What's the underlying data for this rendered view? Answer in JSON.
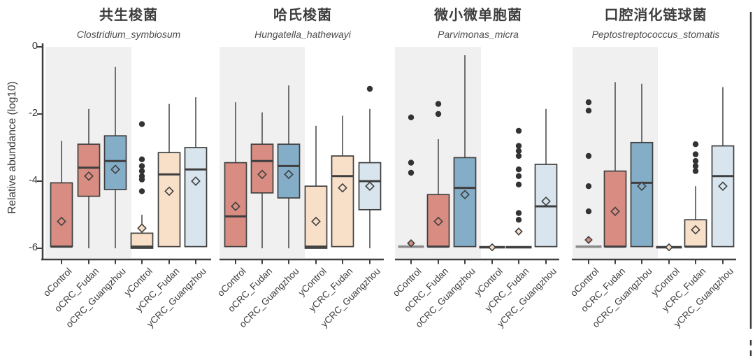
{
  "chart_data": {
    "type": "box",
    "ylabel": "Relative abundance (log10)",
    "ylim": [
      -6,
      0
    ],
    "yticks": [
      0,
      -2,
      -4,
      -6
    ],
    "grid": false,
    "legend": "none",
    "categories": [
      "oControl",
      "oCRC_Fudan",
      "oCRC_Guangzhou",
      "yControl",
      "yCRC_Fudan",
      "yCRC_Guangzhou"
    ],
    "group_fills": [
      "salmon",
      "salmon",
      "steel_blue",
      "pale_peach",
      "pale_peach",
      "pale_blue"
    ],
    "shaded_groups": [
      0,
      1,
      2
    ],
    "panels": [
      {
        "title": "共生梭菌",
        "species": "Clostridium_symbiosum",
        "boxes": [
          {
            "group": "oControl",
            "whisker_low": -5.95,
            "q1": -5.95,
            "median": -5.95,
            "q3": -4.05,
            "whisker_high": -2.8,
            "mean": -5.2,
            "outliers": []
          },
          {
            "group": "oCRC_Fudan",
            "whisker_low": -6.0,
            "q1": -4.45,
            "median": -3.6,
            "q3": -2.9,
            "whisker_high": -1.85,
            "mean": -3.85,
            "outliers": []
          },
          {
            "group": "oCRC_Guangzhou",
            "whisker_low": -6.0,
            "q1": -4.25,
            "median": -3.4,
            "q3": -2.65,
            "whisker_high": -0.6,
            "mean": -3.65,
            "outliers": []
          },
          {
            "group": "yControl",
            "whisker_low": -6.0,
            "q1": -6.0,
            "median": -5.95,
            "q3": -5.55,
            "whisker_high": -5.0,
            "mean": -5.4,
            "outliers": [
              -2.3,
              -3.35,
              -3.55,
              -3.7,
              -3.85,
              -3.95,
              -4.3
            ]
          },
          {
            "group": "yCRC_Fudan",
            "whisker_low": -5.95,
            "q1": -5.95,
            "median": -3.8,
            "q3": -3.15,
            "whisker_high": -1.7,
            "mean": -4.3,
            "outliers": []
          },
          {
            "group": "yCRC_Guangzhou",
            "whisker_low": -5.95,
            "q1": -5.95,
            "median": -3.65,
            "q3": -3.0,
            "whisker_high": -1.5,
            "mean": -4.0,
            "outliers": []
          }
        ]
      },
      {
        "title": "哈氏梭菌",
        "species": "Hungatella_hathewayi",
        "boxes": [
          {
            "group": "oControl",
            "whisker_low": -5.95,
            "q1": -5.95,
            "median": -5.05,
            "q3": -3.45,
            "whisker_high": -1.65,
            "mean": -4.75,
            "outliers": []
          },
          {
            "group": "oCRC_Fudan",
            "whisker_low": -6.0,
            "q1": -4.35,
            "median": -3.4,
            "q3": -2.9,
            "whisker_high": -1.95,
            "mean": -3.8,
            "outliers": []
          },
          {
            "group": "oCRC_Guangzhou",
            "whisker_low": -6.0,
            "q1": -4.5,
            "median": -3.55,
            "q3": -2.9,
            "whisker_high": -1.15,
            "mean": -3.8,
            "outliers": []
          },
          {
            "group": "yControl",
            "whisker_low": -6.0,
            "q1": -6.0,
            "median": -5.95,
            "q3": -4.15,
            "whisker_high": -2.35,
            "mean": -5.2,
            "outliers": []
          },
          {
            "group": "yCRC_Fudan",
            "whisker_low": -5.95,
            "q1": -5.95,
            "median": -3.85,
            "q3": -3.25,
            "whisker_high": -2.05,
            "mean": -4.2,
            "outliers": []
          },
          {
            "group": "yCRC_Guangzhou",
            "whisker_low": -6.0,
            "q1": -4.85,
            "median": -4.0,
            "q3": -3.45,
            "whisker_high": -1.85,
            "mean": -4.15,
            "outliers": [
              -1.25
            ]
          }
        ]
      },
      {
        "title": "微小微单胞菌",
        "species": "Parvimonas_micra",
        "boxes": [
          {
            "group": "oControl",
            "flat": "gray",
            "whisker_low": -5.95,
            "q1": -5.95,
            "median": -5.95,
            "q3": -5.95,
            "whisker_high": -5.95,
            "mean": -5.85,
            "outliers": [
              -2.1,
              -3.45,
              -3.75
            ]
          },
          {
            "group": "oCRC_Fudan",
            "whisker_low": -5.95,
            "q1": -5.95,
            "median": -5.95,
            "q3": -4.4,
            "whisker_high": -2.75,
            "mean": -5.2,
            "outliers": [
              -1.7,
              -2.0
            ]
          },
          {
            "group": "oCRC_Guangzhou",
            "whisker_low": -5.95,
            "q1": -5.95,
            "median": -4.2,
            "q3": -3.3,
            "whisker_high": -0.25,
            "mean": -4.4,
            "outliers": []
          },
          {
            "group": "yControl",
            "flat": "dark",
            "whisker_low": -5.97,
            "q1": -5.97,
            "median": -5.97,
            "q3": -5.97,
            "whisker_high": -5.97,
            "mean": -5.97,
            "outliers": []
          },
          {
            "group": "yCRC_Fudan",
            "flat": "dark",
            "whisker_low": -5.97,
            "q1": -5.97,
            "median": -5.97,
            "q3": -5.97,
            "whisker_high": -5.97,
            "mean": -5.5,
            "outliers": [
              -2.5,
              -2.95,
              -3.1,
              -3.25,
              -3.65,
              -3.85,
              -4.1,
              -4.95,
              -5.15
            ]
          },
          {
            "group": "yCRC_Guangzhou",
            "whisker_low": -5.95,
            "q1": -5.95,
            "median": -4.75,
            "q3": -3.5,
            "whisker_high": -1.85,
            "mean": -4.6,
            "outliers": []
          }
        ]
      },
      {
        "title": "口腔消化链球菌",
        "species": "Peptostreptococcus_stomatis",
        "boxes": [
          {
            "group": "oControl",
            "flat": "gray",
            "whisker_low": -5.95,
            "q1": -5.95,
            "median": -5.95,
            "q3": -5.95,
            "whisker_high": -5.95,
            "mean": -5.75,
            "outliers": [
              -1.65,
              -1.9,
              -3.25,
              -4.15,
              -4.9
            ]
          },
          {
            "group": "oCRC_Fudan",
            "whisker_low": -5.95,
            "q1": -5.95,
            "median": -5.95,
            "q3": -3.7,
            "whisker_high": -1.05,
            "mean": -4.9,
            "outliers": []
          },
          {
            "group": "oCRC_Guangzhou",
            "whisker_low": -5.95,
            "q1": -5.95,
            "median": -4.05,
            "q3": -2.85,
            "whisker_high": -1.1,
            "mean": -4.15,
            "outliers": []
          },
          {
            "group": "yControl",
            "flat": "dark",
            "whisker_low": -5.97,
            "q1": -5.97,
            "median": -5.97,
            "q3": -5.97,
            "whisker_high": -5.97,
            "mean": -5.97,
            "outliers": []
          },
          {
            "group": "yCRC_Fudan",
            "whisker_low": -5.95,
            "q1": -5.95,
            "median": -5.95,
            "q3": -5.15,
            "whisker_high": -4.15,
            "mean": -5.45,
            "outliers": [
              -2.9,
              -3.2,
              -3.4,
              -3.55,
              -3.7
            ]
          },
          {
            "group": "yCRC_Guangzhou",
            "whisker_low": -5.95,
            "q1": -5.95,
            "median": -3.85,
            "q3": -2.95,
            "whisker_high": -1.2,
            "mean": -4.15,
            "outliers": []
          }
        ]
      }
    ],
    "colors": {
      "salmon": "#d98d82",
      "steel_blue": "#84adc8",
      "pale_peach": "#f8dfc8",
      "pale_blue": "#d8e5ee",
      "band": "#f0f0f0",
      "line": "#3f3f3f",
      "whisker": "#5a5a5a",
      "outlier": "#333333",
      "collapsed_gray": "#8a8a8a"
    }
  }
}
